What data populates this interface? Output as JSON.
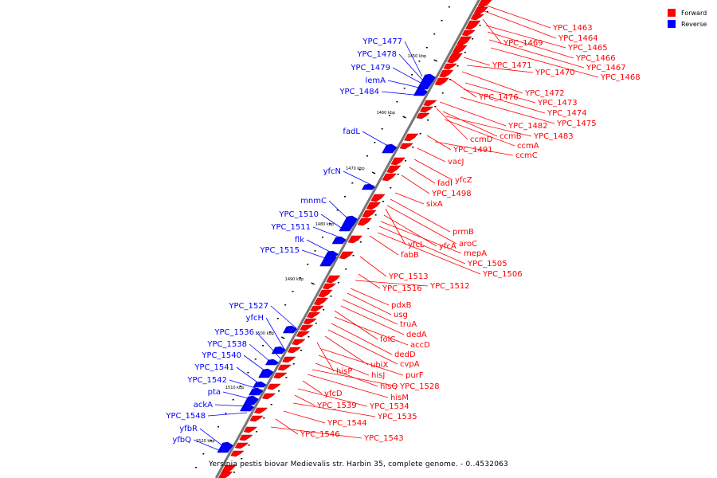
{
  "legend": [
    {
      "label": "Forward",
      "color": "#ff0000"
    },
    {
      "label": "Reverse",
      "color": "#0000ff"
    }
  ],
  "caption": "Yersinia pestis biovar Medievalis str. Harbin 35, complete genome. - 0..4532063",
  "ticks": [
    "1450 kbp",
    "1460 kbp",
    "1470 kbp",
    "1480 kbp",
    "1490 kbp",
    "1500 kbp",
    "1510 kbp",
    "1520 kbp"
  ],
  "forward_labels": [
    "YPC_1463",
    "YPC_1464",
    "YPC_1469",
    "YPC_1465",
    "YPC_1466",
    "YPC_1467",
    "YPC_1468",
    "YPC_1471",
    "YPC_1470",
    "YPC_1472",
    "YPC_1476",
    "YPC_1473",
    "YPC_1474",
    "YPC_1475",
    "YPC_1482",
    "ccmD",
    "ccmB",
    "YPC_1483",
    "ccmA",
    "YPC_1491",
    "ccmC",
    "vacJ",
    "yfcZ",
    "fadI",
    "YPC_1498",
    "sixA",
    "prmB",
    "aroC",
    "yfcL",
    "yfcA",
    "mepA",
    "fabB",
    "YPC_1505",
    "YPC_1506",
    "YPC_1513",
    "YPC_1516",
    "YPC_1512",
    "pdxB",
    "usg",
    "truA",
    "dedA",
    "folC",
    "accD",
    "dedD",
    "cvpA",
    "ubiX",
    "hisP",
    "purF",
    "hisJ",
    "hisQ",
    "YPC_1528",
    "hisM",
    "yfcD",
    "YPC_1534",
    "YPC_1539",
    "YPC_1535",
    "YPC_1544",
    "YPC_1546",
    "YPC_1543"
  ],
  "reverse_labels": [
    "YPC_1477",
    "YPC_1478",
    "YPC_1479",
    "lemA",
    "YPC_1484",
    "fadL",
    "yfcN",
    "mnmC",
    "YPC_1510",
    "YPC_1511",
    "flk",
    "YPC_1515",
    "YPC_1527",
    "yfcH",
    "YPC_1536",
    "YPC_1538",
    "YPC_1540",
    "YPC_1541",
    "YPC_1542",
    "pta",
    "ackA",
    "YPC_1548",
    "yfbR",
    "yfbQ"
  ]
}
